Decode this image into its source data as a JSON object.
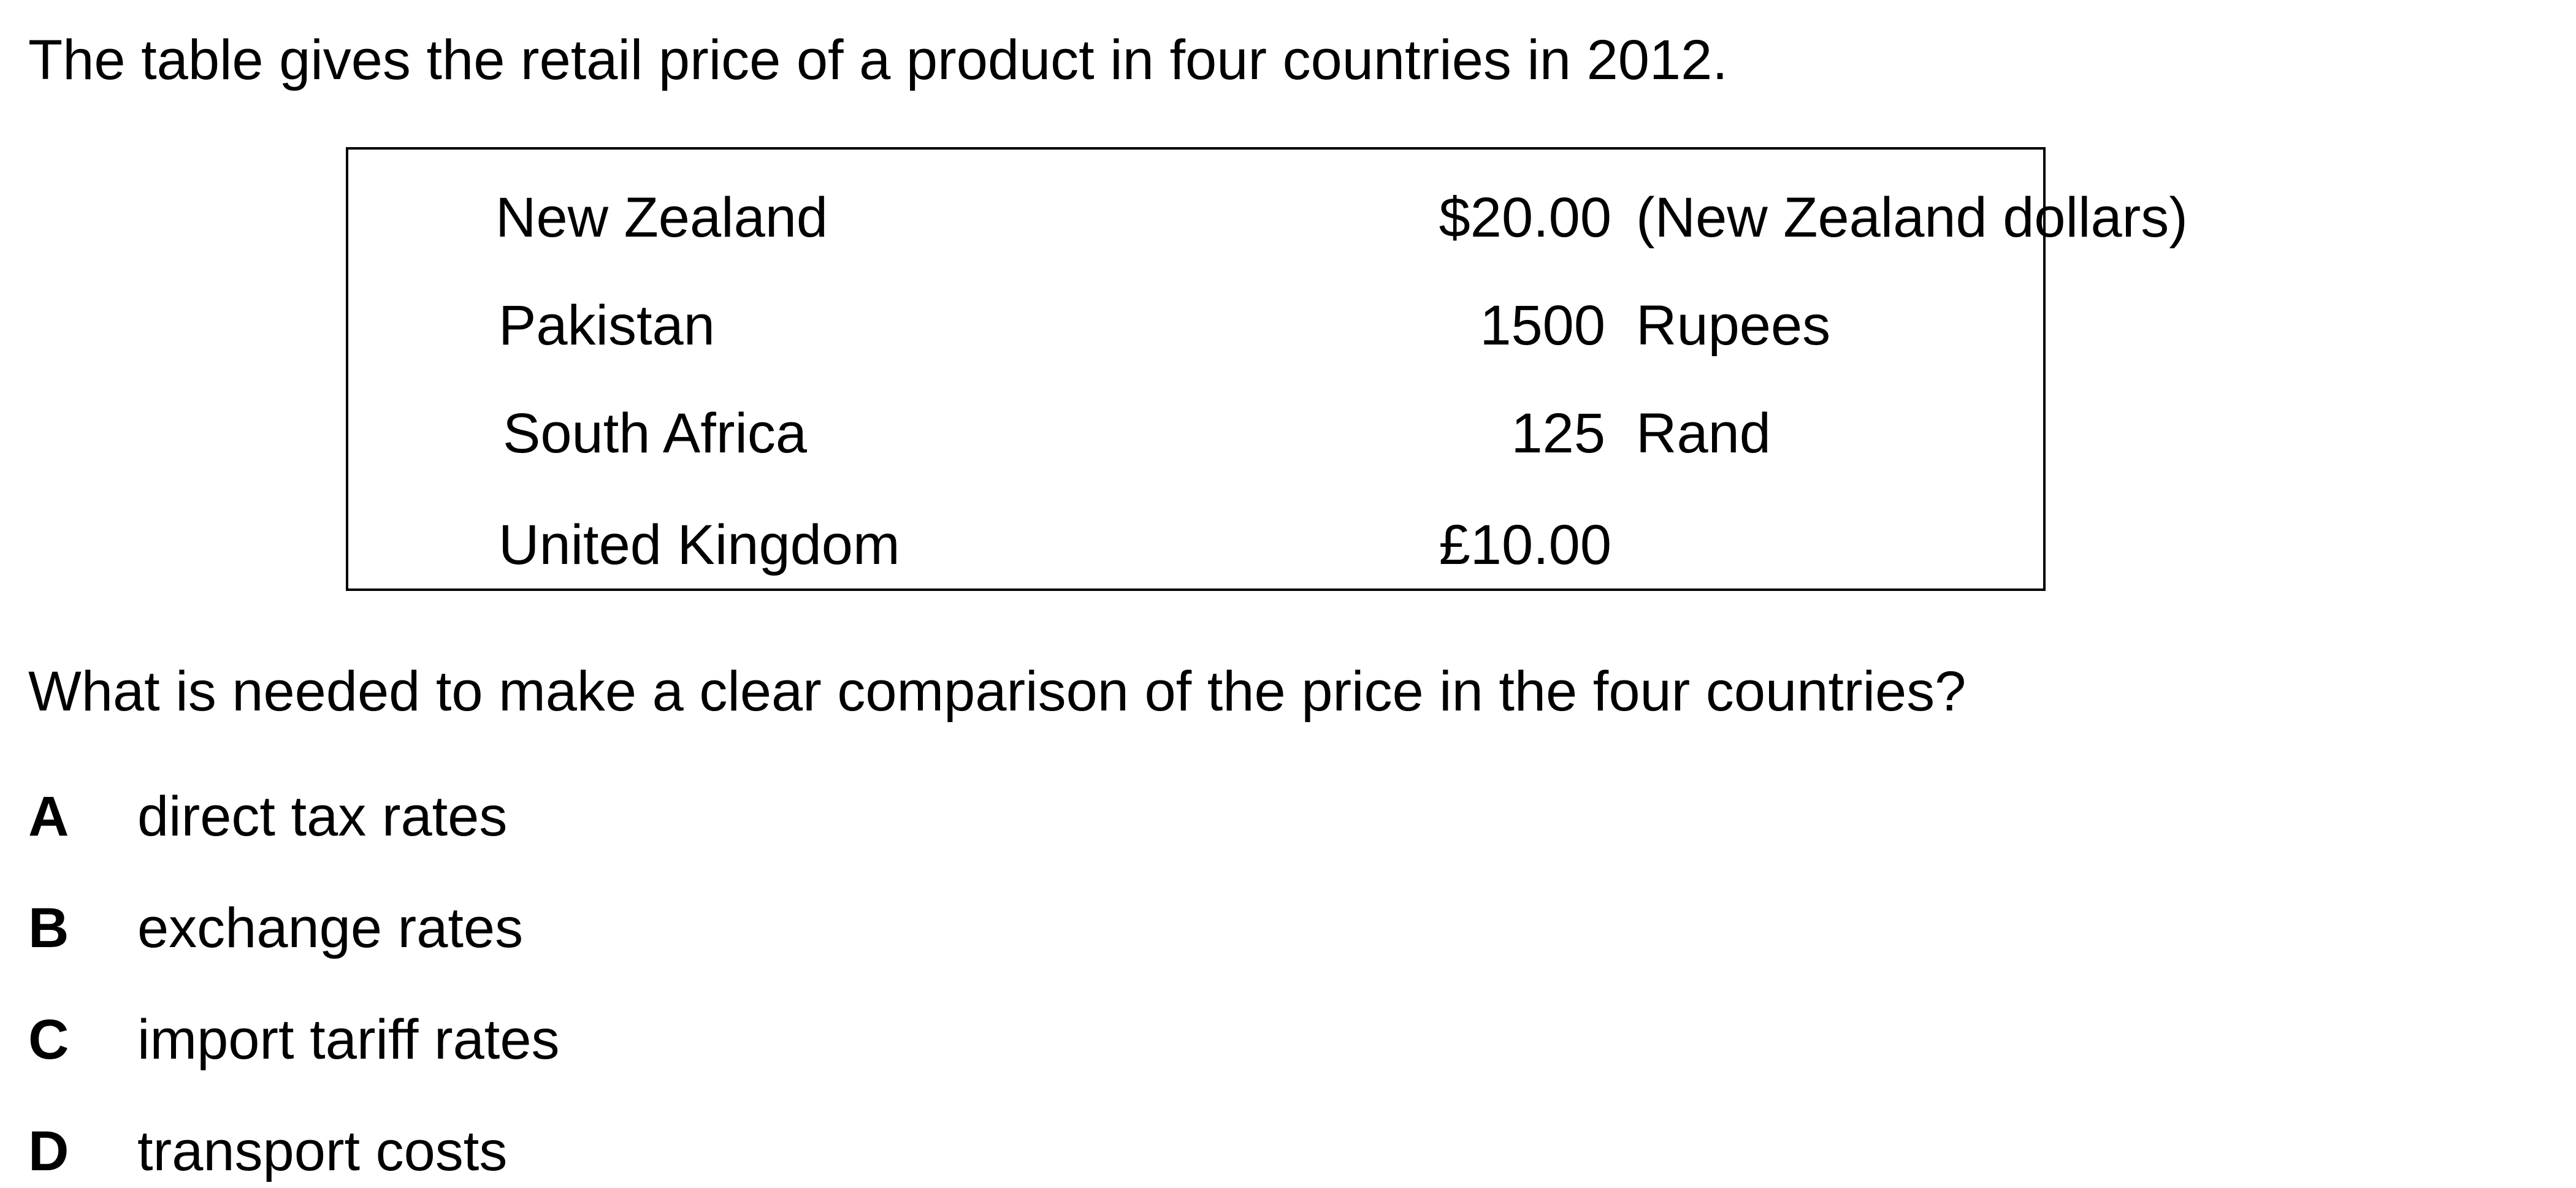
{
  "intro": "The table gives the retail price of a product in four countries in 2012.",
  "table": {
    "rows": [
      {
        "country": "New Zealand",
        "price": "$20.00",
        "currency": "(New Zealand dollars)"
      },
      {
        "country": "Pakistan",
        "price": "1500",
        "currency": "Rupees"
      },
      {
        "country": "South Africa",
        "price": "125",
        "currency": "Rand"
      },
      {
        "country": "United Kingdom",
        "price": "£10.00",
        "currency": ""
      }
    ]
  },
  "question": "What is needed to make a clear comparison of the price in the four countries?",
  "options": [
    {
      "letter": "A",
      "text": "direct tax rates"
    },
    {
      "letter": "B",
      "text": "exchange rates"
    },
    {
      "letter": "C",
      "text": "import tariff rates"
    },
    {
      "letter": "D",
      "text": "transport costs"
    }
  ]
}
